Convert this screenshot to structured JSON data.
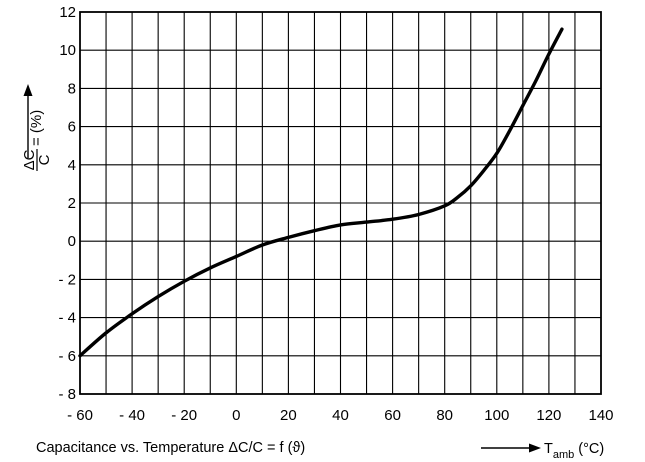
{
  "chart_data": {
    "type": "line",
    "caption": "Capacitance vs. Temperature ΔC/C = f (ϑ)",
    "xlabel": {
      "arrow": "→",
      "symbol": "T",
      "subscript": "amb",
      "unit": "(°C)"
    },
    "ylabel": {
      "numerator": "ΔC",
      "denominator": "C",
      "suffix": "= (%)",
      "arrow": "→"
    },
    "xlim": [
      -60,
      140
    ],
    "ylim": [
      -8,
      12
    ],
    "x_major_ticks": [
      -60,
      -40,
      -20,
      0,
      20,
      40,
      60,
      80,
      100,
      120,
      140
    ],
    "x_tick_labels": [
      "- 60",
      "- 40",
      "- 20",
      "0",
      "20",
      "40",
      "60",
      "80",
      "100",
      "120",
      "140"
    ],
    "y_major_ticks": [
      -8,
      -6,
      -4,
      -2,
      0,
      2,
      4,
      6,
      8,
      10,
      12
    ],
    "y_tick_labels": [
      "- 8",
      "- 6",
      "- 4",
      "- 2",
      "0",
      "2",
      "4",
      "6",
      "8",
      "10",
      "12"
    ],
    "x_grid_step": 10,
    "y_grid_step": 2,
    "grid": true,
    "series": [
      {
        "color": "#000000",
        "x": [
          -60,
          -50,
          -40,
          -30,
          -20,
          -10,
          0,
          10,
          20,
          30,
          40,
          50,
          60,
          70,
          80,
          85,
          90,
          95,
          100,
          105,
          110,
          115,
          120,
          125
        ],
        "y": [
          -6.0,
          -4.8,
          -3.8,
          -2.9,
          -2.1,
          -1.4,
          -0.8,
          -0.2,
          0.2,
          0.55,
          0.85,
          1.0,
          1.15,
          1.4,
          1.85,
          2.3,
          2.9,
          3.7,
          4.6,
          5.8,
          7.1,
          8.4,
          9.8,
          11.1
        ]
      }
    ]
  }
}
